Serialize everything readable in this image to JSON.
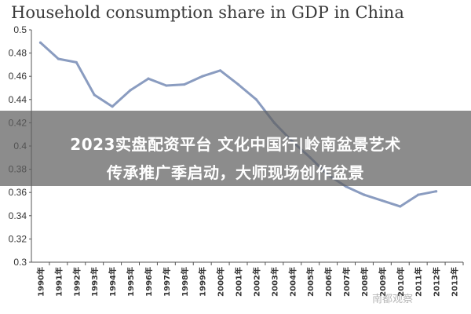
{
  "chart_data": {
    "type": "line",
    "title": "Household consumption share in GDP in China",
    "xlabel": "",
    "ylabel": "",
    "ylim": [
      0.3,
      0.5
    ],
    "yticks": [
      "0.3",
      "0.32",
      "0.34",
      "0.36",
      "0.38",
      "0.4",
      "0.42",
      "0.44",
      "0.46",
      "0.48",
      "0.5"
    ],
    "categories": [
      "1990年",
      "1991年",
      "1992年",
      "1993年",
      "1994年",
      "1995年",
      "1996年",
      "1997年",
      "1998年",
      "1999年",
      "2000年",
      "2001年",
      "2002年",
      "2003年",
      "2004年",
      "2005年",
      "2006年",
      "2007年",
      "2008年",
      "2009年",
      "2010年",
      "2011年",
      "2012年",
      "2013年"
    ],
    "series": [
      {
        "values": [
          0.489,
          0.475,
          0.472,
          0.444,
          0.434,
          0.448,
          0.458,
          0.452,
          0.453,
          0.46,
          0.465,
          0.453,
          0.44,
          0.42,
          0.404,
          0.39,
          0.375,
          0.365,
          0.358,
          0.353,
          0.348,
          0.358,
          0.361,
          null
        ]
      }
    ],
    "grid": false,
    "line_color": "#8a9cc0"
  },
  "overlay": {
    "line1": "2023实盘配资平台 文化中国行|岭南盆景艺术",
    "line2": "传承推广季启动，大师现场创作盆景"
  },
  "watermark": "南都观察"
}
